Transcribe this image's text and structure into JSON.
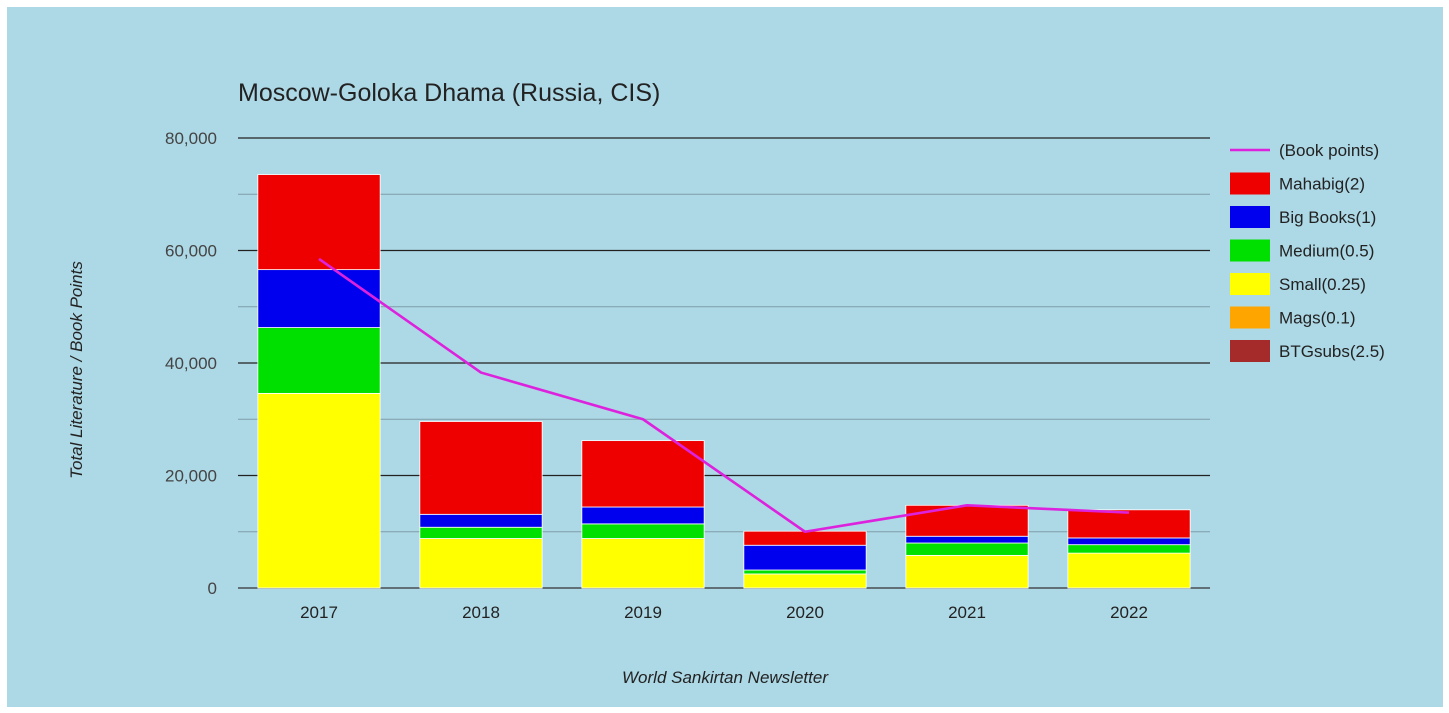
{
  "chart_data": {
    "type": "bar",
    "stacked": true,
    "title": "Moscow-Goloka Dhama (Russia, CIS)",
    "xlabel": "World Sankirtan Newsletter",
    "ylabel": "Total Literature / Book Points",
    "categories": [
      "2017",
      "2018",
      "2019",
      "2020",
      "2021",
      "2022"
    ],
    "ylim": [
      0,
      80000
    ],
    "yticks": [
      0,
      20000,
      40000,
      60000,
      80000
    ],
    "ytick_labels": [
      "0",
      "20,000",
      "40,000",
      "60,000",
      "80,000"
    ],
    "grid": true,
    "legend_position": "right",
    "series": [
      {
        "name": "Small(0.25)",
        "color": "#ffff00",
        "values": [
          34600,
          8800,
          8800,
          2500,
          5800,
          6200
        ]
      },
      {
        "name": "Medium(0.5)",
        "color": "#00e000",
        "values": [
          11700,
          2000,
          2600,
          700,
          2200,
          1500
        ]
      },
      {
        "name": "Big Books(1)",
        "color": "#0000ee",
        "values": [
          10300,
          2300,
          3000,
          4400,
          1200,
          1200
        ]
      },
      {
        "name": "Mahabig(2)",
        "color": "#ee0000",
        "values": [
          16900,
          16500,
          11800,
          2500,
          5500,
          5000
        ]
      },
      {
        "name": "Mags(0.1)",
        "color": "#ffa500",
        "values": [
          0,
          0,
          0,
          0,
          0,
          0
        ]
      },
      {
        "name": "BTGsubs(2.5)",
        "color": "#a52a2a",
        "values": [
          0,
          0,
          0,
          0,
          0,
          0
        ]
      }
    ],
    "line_series": {
      "name": "(Book points)",
      "color": "#dd22dd",
      "values": [
        58500,
        38300,
        30000,
        10000,
        14700,
        13400
      ]
    },
    "legend_order": [
      "(Book points)",
      "Mahabig(2)",
      "Big Books(1)",
      "Medium(0.5)",
      "Small(0.25)",
      "Mags(0.1)",
      "BTGsubs(2.5)"
    ]
  }
}
